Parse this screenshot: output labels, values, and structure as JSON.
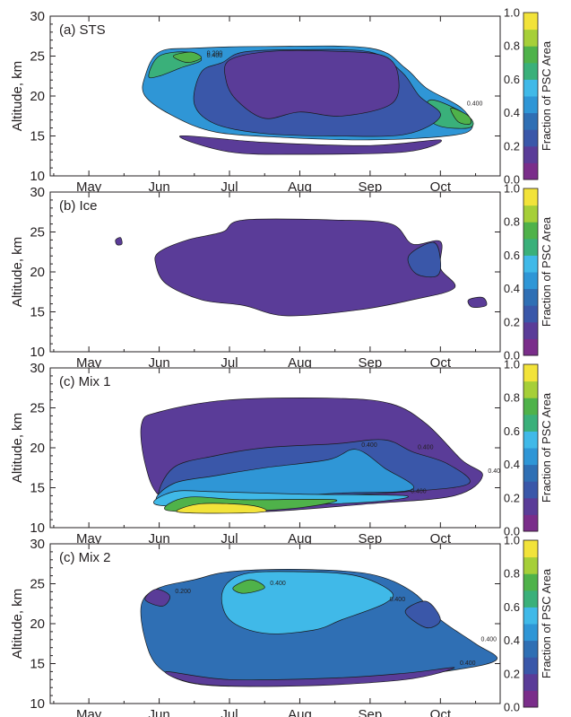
{
  "chart_data": [
    {
      "type": "heatmap",
      "panel_label": "(a) STS",
      "ylabel": "Altitude, km",
      "ylim": [
        10,
        30
      ],
      "yticks": [
        "10",
        "15",
        "20",
        "25",
        "30"
      ],
      "xticks": [
        "May",
        "Jun",
        "Jul",
        "Aug",
        "Sep",
        "Oct"
      ],
      "colorbar": {
        "label": "Fraction of PSC Area",
        "ticks": [
          "0.0",
          "0.2",
          "0.4",
          "0.6",
          "0.8",
          "1.0"
        ],
        "range": [
          0,
          1
        ]
      },
      "contour_labels": [
        "0.400",
        "0.400",
        "0.200"
      ],
      "fields": [
        {
          "value": 0.4,
          "points": [
            [
              0.8,
              22.5
            ],
            [
              1.0,
              25.5
            ],
            [
              1.5,
              26
            ],
            [
              2.5,
              26.2
            ],
            [
              4.0,
              26
            ],
            [
              4.5,
              23.5
            ],
            [
              4.8,
              21
            ],
            [
              5.3,
              18.5
            ],
            [
              5.45,
              16
            ],
            [
              5.1,
              15
            ],
            [
              4.0,
              14.5
            ],
            [
              2.8,
              14.8
            ],
            [
              1.8,
              15.5
            ],
            [
              1.2,
              17.5
            ],
            [
              0.8,
              20
            ]
          ]
        },
        {
          "value": 0.6,
          "points": [
            [
              0.85,
              22.5
            ],
            [
              1.0,
              25.0
            ],
            [
              1.4,
              25.5
            ],
            [
              1.6,
              24.5
            ],
            [
              1.3,
              23.5
            ],
            [
              1.0,
              22.5
            ]
          ]
        },
        {
          "value": 0.78,
          "points": [
            [
              1.2,
              25.0
            ],
            [
              1.45,
              25.5
            ],
            [
              1.6,
              24.8
            ],
            [
              1.4,
              24.2
            ]
          ]
        },
        {
          "value": 0.62,
          "points": [
            [
              4.85,
              19.5
            ],
            [
              5.2,
              18.5
            ],
            [
              5.45,
              17
            ],
            [
              5.4,
              16
            ],
            [
              5.0,
              16.2
            ],
            [
              4.8,
              17.5
            ]
          ]
        },
        {
          "value": 0.78,
          "points": [
            [
              5.15,
              18.5
            ],
            [
              5.4,
              17.5
            ],
            [
              5.42,
              16.5
            ],
            [
              5.25,
              16.8
            ]
          ]
        },
        {
          "value": 0.28,
          "points": [
            [
              1.6,
              23
            ],
            [
              1.9,
              24.2
            ],
            [
              2.2,
              25.5
            ],
            [
              3.0,
              25.8
            ],
            [
              4.0,
              25.5
            ],
            [
              4.45,
              23
            ],
            [
              4.7,
              20
            ],
            [
              5.0,
              17.5
            ],
            [
              4.5,
              15.2
            ],
            [
              3.5,
              15.0
            ],
            [
              2.5,
              15.3
            ],
            [
              1.8,
              16.5
            ],
            [
              1.5,
              19.0
            ]
          ]
        },
        {
          "value": 0.12,
          "points": [
            [
              2.0,
              24.5
            ],
            [
              2.6,
              25.6
            ],
            [
              3.5,
              25.6
            ],
            [
              4.2,
              25
            ],
            [
              4.4,
              22.5
            ],
            [
              4.3,
              19
            ],
            [
              3.6,
              17.5
            ],
            [
              3.0,
              18.0
            ],
            [
              2.5,
              17.2
            ],
            [
              2.1,
              19.5
            ],
            [
              1.95,
              22
            ]
          ]
        },
        {
          "value": 0.1,
          "points": [
            [
              1.3,
              15
            ],
            [
              2.5,
              14.2
            ],
            [
              4.0,
              13.8
            ],
            [
              5.0,
              14.5
            ],
            [
              4.5,
              13.0
            ],
            [
              3.0,
              12.7
            ],
            [
              2.0,
              13.0
            ]
          ]
        }
      ]
    },
    {
      "type": "heatmap",
      "panel_label": "(b) Ice",
      "ylabel": "Altitude, km",
      "ylim": [
        10,
        30
      ],
      "yticks": [
        "10",
        "15",
        "20",
        "25",
        "30"
      ],
      "xticks": [
        "May",
        "Jun",
        "Jul",
        "Aug",
        "Sep",
        "Oct"
      ],
      "colorbar": {
        "label": "Fraction of PSC Area",
        "ticks": [
          "0.0",
          "0.2",
          "0.4",
          "0.6",
          "0.8",
          "1.0"
        ],
        "range": [
          0,
          1
        ]
      },
      "contour_labels": [],
      "fields": [
        {
          "value": 0.1,
          "points": [
            [
              1.0,
              22.5
            ],
            [
              1.4,
              24
            ],
            [
              1.9,
              25.0
            ],
            [
              2.2,
              26.5
            ],
            [
              3.5,
              26.5
            ],
            [
              4.3,
              26
            ],
            [
              4.6,
              23.5
            ],
            [
              5.0,
              23.8
            ],
            [
              5.0,
              20.5
            ],
            [
              5.2,
              18.0
            ],
            [
              4.6,
              16.5
            ],
            [
              3.8,
              15.2
            ],
            [
              2.8,
              14.5
            ],
            [
              2.2,
              15.8
            ],
            [
              1.6,
              16.5
            ],
            [
              1.1,
              18.5
            ],
            [
              0.95,
              21
            ]
          ]
        },
        {
          "value": 0.2,
          "points": [
            [
              4.55,
              22.0
            ],
            [
              4.9,
              23.7
            ],
            [
              5.0,
              21.5
            ],
            [
              4.95,
              19.5
            ],
            [
              4.65,
              19.8
            ]
          ]
        },
        {
          "value": 0.12,
          "points": [
            [
              5.4,
              16.5
            ],
            [
              5.6,
              16.8
            ],
            [
              5.65,
              15.8
            ],
            [
              5.45,
              15.6
            ]
          ]
        },
        {
          "value": 0.1,
          "points": [
            [
              0.38,
              24
            ],
            [
              0.45,
              24.3
            ],
            [
              0.47,
              23.5
            ],
            [
              0.4,
              23.4
            ]
          ]
        }
      ]
    },
    {
      "type": "heatmap",
      "panel_label": "(c) Mix 1",
      "ylabel": "Altitude, km",
      "ylim": [
        10,
        30
      ],
      "yticks": [
        "10",
        "15",
        "20",
        "25",
        "30"
      ],
      "xticks": [
        "May",
        "Jun",
        "Jul",
        "Aug",
        "Sep",
        "Oct"
      ],
      "colorbar": {
        "label": "Fraction of PSC Area",
        "ticks": [
          "0.0",
          "0.2",
          "0.4",
          "0.6",
          "0.8",
          "1.0"
        ],
        "range": [
          0,
          1
        ]
      },
      "contour_labels": [
        "0.400",
        "0.400",
        "0.400",
        "0.400"
      ],
      "fields": [
        {
          "value": 0.12,
          "points": [
            [
              0.75,
              23
            ],
            [
              1.0,
              24.5
            ],
            [
              2.0,
              26.0
            ],
            [
              3.5,
              26.2
            ],
            [
              4.3,
              25.5
            ],
            [
              4.8,
              23
            ],
            [
              5.3,
              18.5
            ],
            [
              5.6,
              16.5
            ],
            [
              5.2,
              14
            ],
            [
              4.0,
              13.0
            ],
            [
              2.5,
              12.0
            ],
            [
              1.5,
              12.2
            ],
            [
              1.0,
              14
            ],
            [
              0.8,
              18
            ]
          ]
        },
        {
          "value": 0.25,
          "points": [
            [
              1.0,
              13.5
            ],
            [
              1.5,
              13.0
            ],
            [
              3.0,
              13.8
            ],
            [
              4.5,
              14.5
            ],
            [
              5.4,
              15.5
            ],
            [
              5.1,
              18.0
            ],
            [
              4.6,
              19.5
            ],
            [
              4.2,
              21.0
            ],
            [
              3.5,
              20.5
            ],
            [
              2.5,
              20.0
            ],
            [
              1.8,
              19.0
            ],
            [
              1.2,
              17.5
            ]
          ]
        },
        {
          "value": 0.42,
          "points": [
            [
              1.0,
              13.2
            ],
            [
              2.0,
              13.5
            ],
            [
              3.5,
              14.3
            ],
            [
              4.6,
              14.8
            ],
            [
              4.2,
              17.5
            ],
            [
              3.8,
              19.8
            ],
            [
              3.4,
              18.5
            ],
            [
              2.5,
              17.5
            ],
            [
              1.8,
              16.5
            ],
            [
              1.2,
              15.5
            ]
          ]
        },
        {
          "value": 0.58,
          "points": [
            [
              1.0,
              12.8
            ],
            [
              2.5,
              12.8
            ],
            [
              4.0,
              13.2
            ],
            [
              4.5,
              14.0
            ],
            [
              3.0,
              14.2
            ],
            [
              1.8,
              14.5
            ],
            [
              1.2,
              14.5
            ]
          ]
        },
        {
          "value": 0.78,
          "points": [
            [
              1.1,
              12.2
            ],
            [
              2.0,
              12.0
            ],
            [
              3.0,
              12.5
            ],
            [
              3.5,
              13.5
            ],
            [
              2.2,
              13.5
            ],
            [
              1.4,
              13.8
            ]
          ]
        },
        {
          "value": 0.92,
          "points": [
            [
              1.25,
              12.0
            ],
            [
              1.8,
              11.8
            ],
            [
              2.5,
              12.0
            ],
            [
              2.3,
              12.8
            ],
            [
              1.6,
              13.0
            ]
          ]
        }
      ]
    },
    {
      "type": "heatmap",
      "panel_label": "(c) Mix 2",
      "ylabel": "Altitude, km",
      "ylim": [
        10,
        30
      ],
      "yticks": [
        "10",
        "15",
        "20",
        "25",
        "30"
      ],
      "xticks": [
        "May",
        "Jun",
        "Jul",
        "Aug",
        "Sep",
        "Oct"
      ],
      "colorbar": {
        "label": "Fraction of PSC Area",
        "ticks": [
          "0.0",
          "0.2",
          "0.4",
          "0.6",
          "0.8",
          "1.0"
        ],
        "range": [
          0,
          1
        ]
      },
      "contour_labels": [
        "0.400",
        "0.400",
        "0.400",
        "0.400",
        "0.200"
      ],
      "fields": [
        {
          "value": 0.38,
          "points": [
            [
              0.75,
              22.5
            ],
            [
              1.0,
              24.5
            ],
            [
              1.5,
              25.5
            ],
            [
              2.0,
              26.5
            ],
            [
              3.0,
              26.8
            ],
            [
              4.0,
              26.2
            ],
            [
              4.6,
              24
            ],
            [
              5.0,
              20.5
            ],
            [
              5.5,
              17.5
            ],
            [
              5.8,
              15.5
            ],
            [
              5.2,
              14.2
            ],
            [
              4.0,
              13.0
            ],
            [
              2.5,
              12.2
            ],
            [
              1.5,
              12.5
            ],
            [
              1.0,
              14.5
            ],
            [
              0.8,
              18
            ]
          ]
        },
        {
          "value": 0.55,
          "points": [
            [
              1.9,
              24
            ],
            [
              2.2,
              26.2
            ],
            [
              3.0,
              26.5
            ],
            [
              3.8,
              26
            ],
            [
              4.3,
              24
            ],
            [
              4.2,
              22.5
            ],
            [
              3.6,
              20.5
            ],
            [
              3.2,
              19.2
            ],
            [
              2.5,
              18.8
            ],
            [
              2.0,
              20.5
            ]
          ]
        },
        {
          "value": 0.78,
          "points": [
            [
              2.05,
              24.5
            ],
            [
              2.3,
              25.5
            ],
            [
              2.5,
              24.5
            ],
            [
              2.2,
              23.8
            ]
          ]
        },
        {
          "value": 0.15,
          "points": [
            [
              1.1,
              14
            ],
            [
              2.0,
              13.0
            ],
            [
              3.5,
              13.2
            ],
            [
              4.5,
              13.8
            ],
            [
              5.2,
              14.5
            ],
            [
              4.5,
              13.0
            ],
            [
              3.0,
              12.2
            ],
            [
              1.6,
              12.4
            ]
          ]
        },
        {
          "value": 0.12,
          "points": [
            [
              0.8,
              23
            ],
            [
              0.95,
              24.3
            ],
            [
              1.15,
              23.5
            ],
            [
              1.05,
              22.2
            ]
          ]
        },
        {
          "value": 0.25,
          "points": [
            [
              4.5,
              21.5
            ],
            [
              4.8,
              22.8
            ],
            [
              5.0,
              20.5
            ],
            [
              4.8,
              19.5
            ]
          ]
        }
      ]
    }
  ]
}
